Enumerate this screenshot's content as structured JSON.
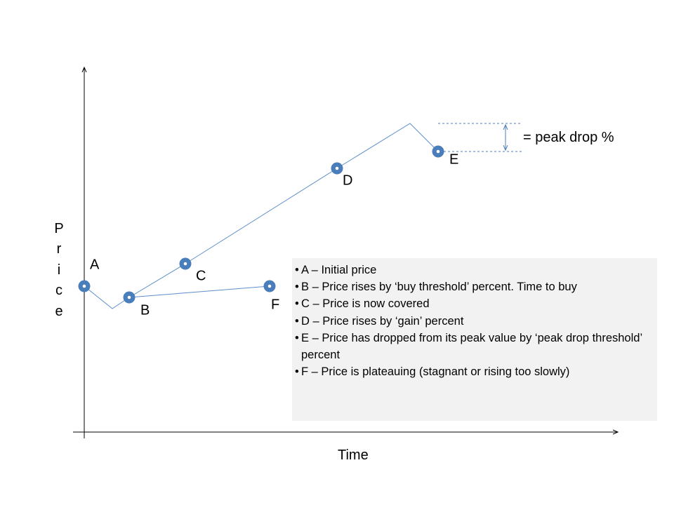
{
  "axes": {
    "y_label": "Price",
    "x_label": "Time"
  },
  "points": [
    {
      "label": "A"
    },
    {
      "label": "B"
    },
    {
      "label": "C"
    },
    {
      "label": "D"
    },
    {
      "label": "E"
    },
    {
      "label": "F"
    }
  ],
  "peak_drop_label": "= peak drop %",
  "legend": [
    "A – Initial price",
    "B – Price rises by ‘buy threshold’ percent.  Time to buy",
    "C – Price is now covered",
    "D – Price rises by ‘gain’ percent",
    "E – Price has dropped from its peak value by ‘peak drop threshold’ percent",
    "F – Price is plateauing (stagnant or rising too slowly)"
  ],
  "colors": {
    "line": "#5b8ec9",
    "marker": "#4a7ebb",
    "axis": "#000000",
    "legend_bg": "#f2f2f2"
  }
}
